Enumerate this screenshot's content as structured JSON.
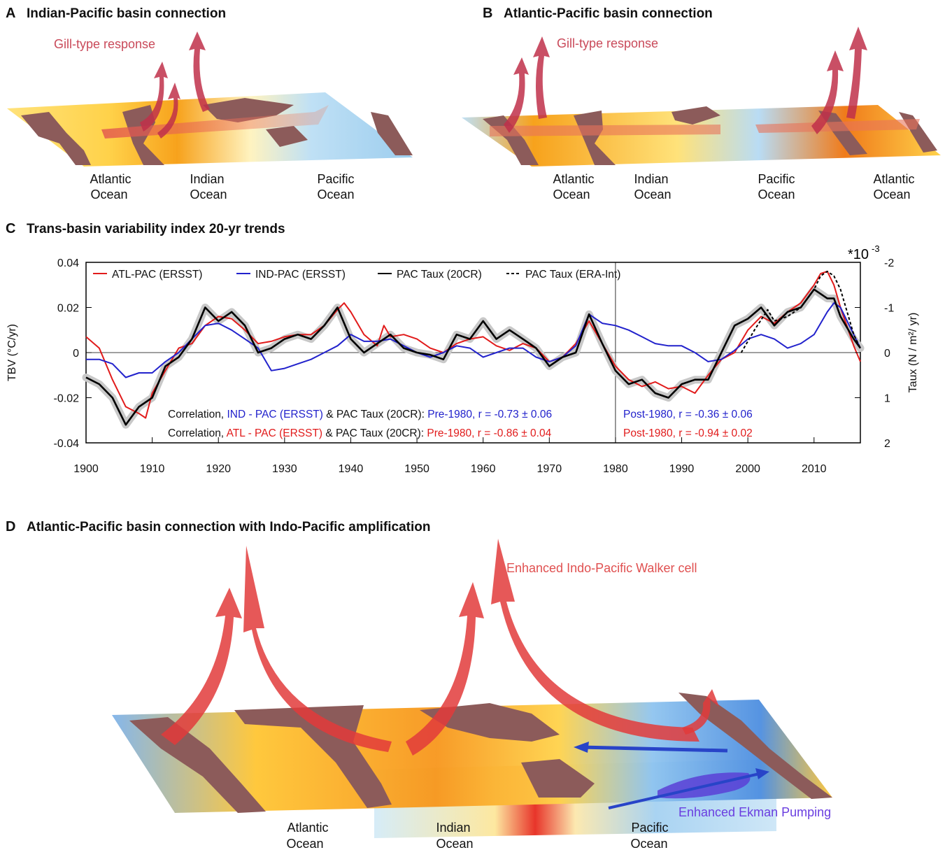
{
  "panels": {
    "a": {
      "letter": "A",
      "title": "Indian-Pacific basin connection",
      "annotation": "Gill-type response",
      "oceans": [
        [
          "Atlantic",
          "Ocean"
        ],
        [
          "Indian",
          "Ocean"
        ],
        [
          "Pacific",
          "Ocean"
        ]
      ]
    },
    "b": {
      "letter": "B",
      "title": "Atlantic-Pacific basin connection",
      "annotation": "Gill-type response",
      "oceans": [
        [
          "Atlantic",
          "Ocean"
        ],
        [
          "Indian",
          "Ocean"
        ],
        [
          "Pacific",
          "Ocean"
        ],
        [
          "Atlantic",
          "Ocean"
        ]
      ]
    },
    "c": {
      "letter": "C",
      "title": "Trans-basin variability index 20-yr trends"
    },
    "d": {
      "letter": "D",
      "title": "Atlantic-Pacific basin connection with Indo-Pacific amplification",
      "annotation_walker": "Enhanced Indo-Pacific Walker cell",
      "annotation_ekman": "Enhanced Ekman Pumping",
      "oceans": [
        [
          "Atlantic",
          "Ocean"
        ],
        [
          "Indian",
          "Ocean"
        ],
        [
          "Pacific",
          "Ocean"
        ]
      ]
    }
  },
  "colors": {
    "atl_pac": "#e11b1b",
    "ind_pac": "#2222cc",
    "pac_taux": "#000000",
    "shade": "#c8c8c8",
    "arrow": "#d9323c"
  },
  "chart_data": {
    "type": "line",
    "title": "Trans-basin variability index 20-yr trends",
    "ylabel": "TBV (°C/yr)",
    "ylabel_right": "Taux (N / m²/ yr)",
    "right_axis_scale": "*10",
    "right_axis_exponent": "-3",
    "xlim": [
      1900,
      2017
    ],
    "ylim": [
      -0.04,
      0.04
    ],
    "ylim_right": [
      2,
      -2
    ],
    "x_ticks": [
      "1900",
      "1910",
      "1920",
      "1930",
      "1940",
      "1950",
      "1960",
      "1970",
      "1980",
      "1990",
      "2000",
      "2010"
    ],
    "y_ticks": [
      "0.04",
      "0.02",
      "0",
      "-0.02",
      "-0.04"
    ],
    "y_ticks_right": [
      "-2",
      "-1",
      "0",
      "1",
      "2"
    ],
    "legend": [
      "ATL-PAC (ERSST)",
      "IND-PAC (ERSST)",
      "PAC Taux (20CR)",
      "PAC Taux (ERA-Int)"
    ],
    "vertical_line_x": 1980,
    "series": [
      {
        "name": "ATL-PAC (ERSST)",
        "axis": "left",
        "x": [
          1900,
          1902,
          1904,
          1906,
          1908,
          1909,
          1910,
          1912,
          1914,
          1916,
          1918,
          1920,
          1922,
          1924,
          1926,
          1928,
          1930,
          1932,
          1934,
          1936,
          1938,
          1939,
          1940,
          1942,
          1944,
          1945,
          1946,
          1948,
          1950,
          1952,
          1954,
          1956,
          1958,
          1960,
          1962,
          1964,
          1966,
          1968,
          1970,
          1972,
          1974,
          1976,
          1978,
          1980,
          1982,
          1984,
          1986,
          1988,
          1990,
          1992,
          1994,
          1996,
          1998,
          2000,
          2002,
          2004,
          2006,
          2008,
          2010,
          2011,
          2012,
          2013,
          2014,
          2016,
          2017
        ],
        "values": [
          0.007,
          0.002,
          -0.012,
          -0.024,
          -0.027,
          -0.029,
          -0.018,
          -0.008,
          0.002,
          0.004,
          0.012,
          0.016,
          0.015,
          0.01,
          0.004,
          0.005,
          0.007,
          0.008,
          0.008,
          0.012,
          0.019,
          0.022,
          0.018,
          0.008,
          0.003,
          0.012,
          0.007,
          0.008,
          0.006,
          0.002,
          0.0,
          0.004,
          0.006,
          0.007,
          0.003,
          0.001,
          0.004,
          0.002,
          -0.004,
          -0.002,
          0.004,
          0.014,
          0.004,
          -0.006,
          -0.012,
          -0.015,
          -0.013,
          -0.016,
          -0.015,
          -0.018,
          -0.01,
          -0.003,
          0.0,
          0.01,
          0.016,
          0.013,
          0.018,
          0.022,
          0.03,
          0.035,
          0.036,
          0.03,
          0.02,
          0.003,
          -0.004
        ]
      },
      {
        "name": "IND-PAC (ERSST)",
        "axis": "left",
        "x": [
          1900,
          1902,
          1904,
          1906,
          1908,
          1910,
          1912,
          1914,
          1916,
          1918,
          1920,
          1922,
          1924,
          1926,
          1928,
          1930,
          1932,
          1934,
          1936,
          1938,
          1940,
          1942,
          1944,
          1946,
          1948,
          1950,
          1952,
          1954,
          1956,
          1958,
          1960,
          1962,
          1964,
          1966,
          1968,
          1970,
          1972,
          1974,
          1976,
          1978,
          1980,
          1982,
          1984,
          1986,
          1988,
          1990,
          1992,
          1994,
          1996,
          1998,
          2000,
          2002,
          2004,
          2006,
          2008,
          2010,
          2012,
          2013,
          2014,
          2016,
          2017
        ],
        "values": [
          -0.003,
          -0.003,
          -0.005,
          -0.011,
          -0.009,
          -0.009,
          -0.004,
          0.0,
          0.006,
          0.012,
          0.013,
          0.01,
          0.006,
          0.002,
          -0.008,
          -0.007,
          -0.005,
          -0.003,
          0.0,
          0.003,
          0.008,
          0.005,
          0.005,
          0.006,
          0.003,
          0.0,
          -0.002,
          0.0,
          0.003,
          0.002,
          -0.002,
          0.0,
          0.002,
          0.002,
          -0.002,
          -0.004,
          -0.002,
          0.003,
          0.017,
          0.013,
          0.012,
          0.01,
          0.007,
          0.004,
          0.003,
          0.003,
          0.0,
          -0.004,
          -0.003,
          0.001,
          0.006,
          0.008,
          0.006,
          0.002,
          0.004,
          0.008,
          0.018,
          0.022,
          0.02,
          0.008,
          0.002
        ]
      },
      {
        "name": "PAC Taux (20CR)",
        "axis": "right",
        "x": [
          1900,
          1902,
          1904,
          1906,
          1908,
          1910,
          1912,
          1914,
          1916,
          1918,
          1920,
          1922,
          1924,
          1926,
          1928,
          1930,
          1932,
          1934,
          1936,
          1938,
          1940,
          1942,
          1944,
          1946,
          1948,
          1950,
          1952,
          1954,
          1956,
          1958,
          1960,
          1962,
          1964,
          1966,
          1968,
          1970,
          1972,
          1974,
          1976,
          1978,
          1980,
          1982,
          1984,
          1986,
          1988,
          1990,
          1992,
          1994,
          1996,
          1998,
          2000,
          2002,
          2004,
          2006,
          2008,
          2010,
          2012,
          2013,
          2014,
          2016,
          2017
        ],
        "values": [
          0.55,
          0.7,
          1.0,
          1.6,
          1.2,
          1.0,
          0.3,
          0.1,
          -0.3,
          -1.0,
          -0.7,
          -0.9,
          -0.6,
          0.0,
          -0.1,
          -0.3,
          -0.4,
          -0.3,
          -0.6,
          -1.0,
          -0.3,
          0.0,
          -0.2,
          -0.4,
          -0.1,
          0.0,
          0.05,
          0.15,
          -0.4,
          -0.3,
          -0.7,
          -0.3,
          -0.5,
          -0.3,
          -0.1,
          0.3,
          0.1,
          0.0,
          -0.85,
          -0.2,
          0.4,
          0.7,
          0.6,
          0.9,
          1.0,
          0.7,
          0.6,
          0.6,
          0.0,
          -0.6,
          -0.75,
          -1.0,
          -0.6,
          -0.9,
          -1.0,
          -1.4,
          -1.2,
          -1.2,
          -0.8,
          -0.3,
          -0.1
        ]
      },
      {
        "name": "PAC Taux (ERA-Int)",
        "axis": "right",
        "x": [
          1999,
          2001,
          2003,
          2004,
          2006,
          2008,
          2010,
          2011,
          2012,
          2013,
          2014,
          2015,
          2016,
          2017
        ],
        "values": [
          0.0,
          -0.5,
          -0.95,
          -0.7,
          -0.8,
          -1.0,
          -1.4,
          -1.7,
          -1.8,
          -1.7,
          -1.4,
          -0.9,
          -0.4,
          -0.1
        ]
      }
    ],
    "correlations": [
      {
        "lead": "Correlation, ",
        "pair": "IND - PAC (ERSST)",
        "rest": " & PAC Taux (20CR): ",
        "pre": "Pre-1980, r = -0.73 ± 0.06",
        "post": "Post-1980, r = -0.36 ± 0.06",
        "color": "#2222cc"
      },
      {
        "lead": "Correlation, ",
        "pair": "ATL - PAC (ERSST)",
        "rest": " & PAC Taux (20CR): ",
        "pre": "Pre-1980, r = -0.86 ± 0.04",
        "post": "Post-1980, r = -0.94 ± 0.02",
        "color": "#e11b1b"
      }
    ]
  }
}
